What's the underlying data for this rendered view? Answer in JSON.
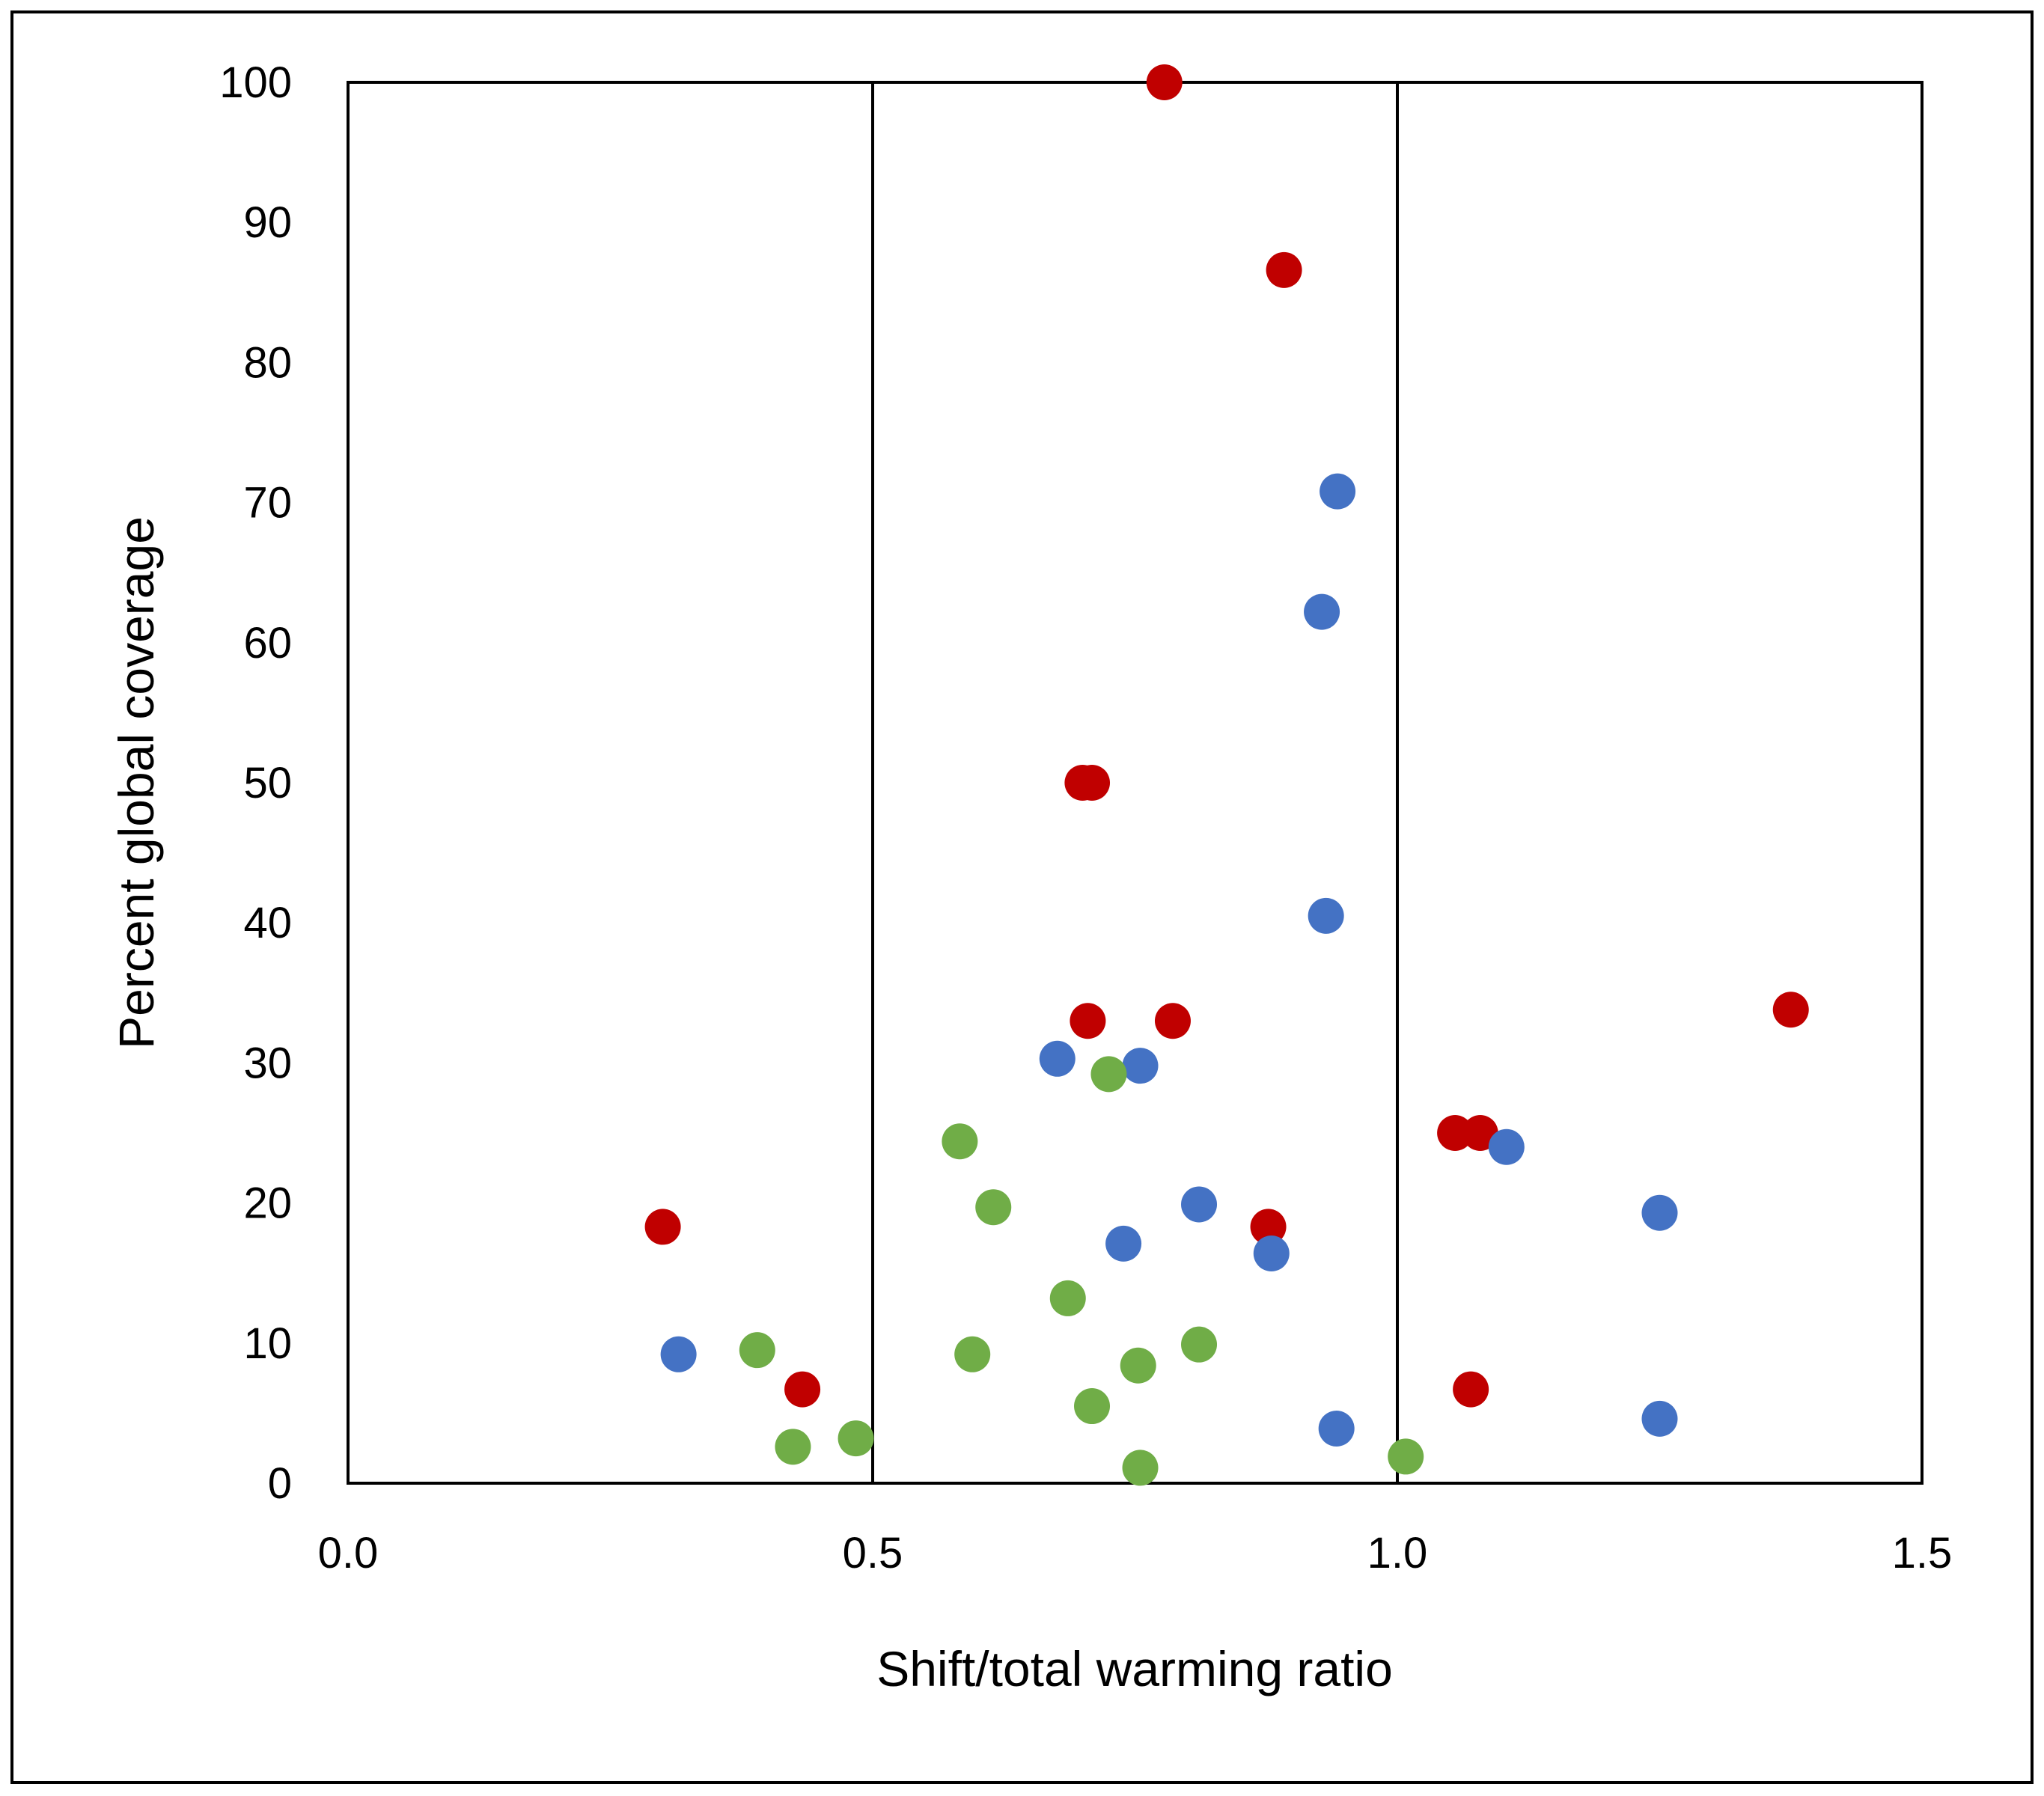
{
  "chart_data": {
    "type": "scatter",
    "title": "",
    "xlabel": "Shift/total warming ratio",
    "ylabel": "Percent global coverage",
    "xlim": [
      0.0,
      1.5
    ],
    "ylim": [
      0,
      100
    ],
    "x_ticks": [
      "0.0",
      "0.5",
      "1.0",
      "1.5"
    ],
    "y_ticks": [
      "0",
      "10",
      "20",
      "30",
      "40",
      "50",
      "60",
      "70",
      "80",
      "90",
      "100"
    ],
    "gridlines": "vertical",
    "legend": "none",
    "series": [
      {
        "name": "red",
        "color": "#c00000",
        "points": [
          {
            "x": 0.778,
            "y": 100
          },
          {
            "x": 0.892,
            "y": 86.6
          },
          {
            "x": 0.7,
            "y": 50.0
          },
          {
            "x": 0.709,
            "y": 50.0
          },
          {
            "x": 0.705,
            "y": 33.0
          },
          {
            "x": 0.786,
            "y": 33.0
          },
          {
            "x": 1.375,
            "y": 33.8
          },
          {
            "x": 1.055,
            "y": 25.0
          },
          {
            "x": 1.079,
            "y": 25.0
          },
          {
            "x": 0.3,
            "y": 18.3
          },
          {
            "x": 0.877,
            "y": 18.3
          },
          {
            "x": 0.433,
            "y": 6.7
          },
          {
            "x": 1.07,
            "y": 6.7
          }
        ]
      },
      {
        "name": "blue",
        "color": "#4472c4",
        "points": [
          {
            "x": 0.943,
            "y": 70.8
          },
          {
            "x": 0.928,
            "y": 62.2
          },
          {
            "x": 0.932,
            "y": 40.5
          },
          {
            "x": 0.676,
            "y": 30.3
          },
          {
            "x": 0.755,
            "y": 29.8
          },
          {
            "x": 1.104,
            "y": 24.0
          },
          {
            "x": 0.811,
            "y": 19.9
          },
          {
            "x": 1.25,
            "y": 19.3
          },
          {
            "x": 0.739,
            "y": 17.1
          },
          {
            "x": 0.88,
            "y": 16.4
          },
          {
            "x": 0.315,
            "y": 9.2
          },
          {
            "x": 0.942,
            "y": 3.9
          },
          {
            "x": 1.25,
            "y": 4.6
          }
        ]
      },
      {
        "name": "green",
        "color": "#70ad47",
        "points": [
          {
            "x": 0.725,
            "y": 29.2
          },
          {
            "x": 0.583,
            "y": 24.4
          },
          {
            "x": 0.615,
            "y": 19.7
          },
          {
            "x": 0.686,
            "y": 13.2
          },
          {
            "x": 0.39,
            "y": 9.5
          },
          {
            "x": 0.595,
            "y": 9.2
          },
          {
            "x": 0.811,
            "y": 9.9
          },
          {
            "x": 0.753,
            "y": 8.4
          },
          {
            "x": 0.709,
            "y": 5.5
          },
          {
            "x": 0.424,
            "y": 2.6
          },
          {
            "x": 0.484,
            "y": 3.2
          },
          {
            "x": 0.755,
            "y": 1.1
          },
          {
            "x": 1.008,
            "y": 1.9
          }
        ]
      }
    ]
  }
}
